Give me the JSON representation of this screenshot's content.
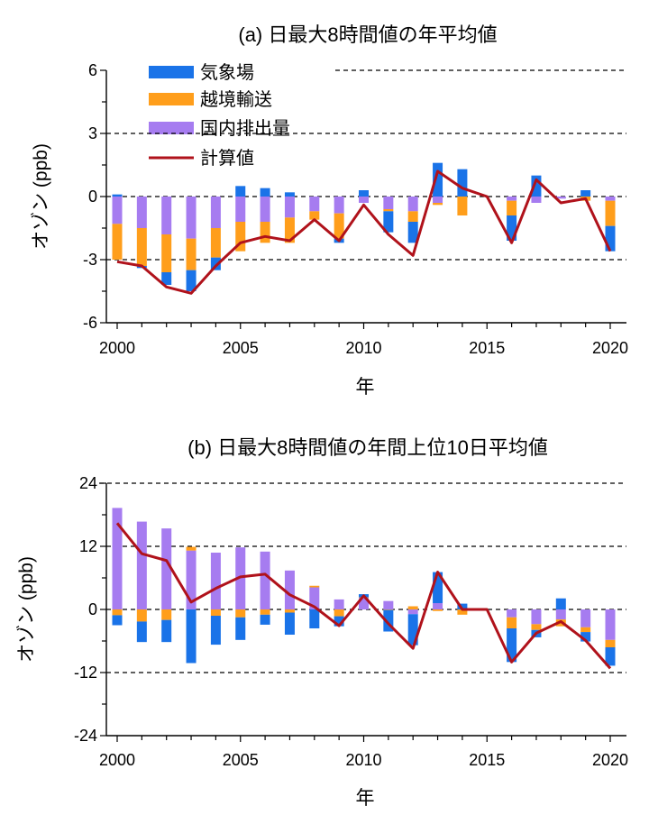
{
  "colors": {
    "meteorology": "#1a73e8",
    "transboundary": "#ff9e1b",
    "domestic": "#a67cf0",
    "calculated": "#b0121b"
  },
  "legend": [
    "気象場",
    "越境輸送",
    "国内排出量",
    "計算値"
  ],
  "chart_data": [
    {
      "type": "bar",
      "title": "(a) 日最大8時間値の年平均値",
      "xlabel": "年",
      "ylabel": "オゾン (ppb)",
      "ylim": [
        -6,
        6
      ],
      "yticks": [
        "6",
        "3",
        "0",
        "-3",
        "-6"
      ],
      "xticks": [
        "2000",
        "2005",
        "2010",
        "2015",
        "2020"
      ],
      "grid": true,
      "legend_position": "top-left",
      "x": [
        2000,
        2001,
        2002,
        2003,
        2004,
        2005,
        2006,
        2007,
        2008,
        2009,
        2010,
        2011,
        2012,
        2013,
        2014,
        2015,
        2016,
        2017,
        2018,
        2019,
        2020
      ],
      "series": [
        {
          "name": "気象場",
          "values": [
            0.1,
            -0.1,
            -0.6,
            -1.0,
            -0.6,
            0.5,
            0.4,
            0.2,
            0.0,
            -0.2,
            0.3,
            -1.0,
            -1.0,
            1.6,
            1.3,
            0.0,
            -1.2,
            1.0,
            0.0,
            0.3,
            -1.2
          ]
        },
        {
          "name": "越境輸送",
          "values": [
            -1.7,
            -1.8,
            -1.8,
            -1.5,
            -1.4,
            -1.4,
            -1.0,
            -1.2,
            -0.4,
            -1.2,
            0.0,
            -0.1,
            -0.5,
            -0.1,
            -0.9,
            0.0,
            -0.7,
            0.0,
            0.0,
            -0.2,
            -1.2
          ]
        },
        {
          "name": "国内排出量",
          "values": [
            -1.3,
            -1.5,
            -1.8,
            -2.0,
            -1.5,
            -1.2,
            -1.2,
            -1.0,
            -0.7,
            -0.8,
            -0.3,
            -0.6,
            -0.7,
            -0.3,
            0.0,
            0.0,
            -0.2,
            -0.3,
            -0.1,
            0.0,
            -0.2
          ]
        },
        {
          "name": "計算値",
          "values": [
            -3.1,
            -3.3,
            -4.3,
            -4.6,
            -3.3,
            -2.2,
            -1.9,
            -2.1,
            -1.1,
            -2.1,
            -0.4,
            -1.8,
            -2.8,
            1.2,
            0.4,
            0.0,
            -2.2,
            0.8,
            -0.3,
            -0.1,
            -2.6
          ]
        }
      ]
    },
    {
      "type": "bar",
      "title": "(b) 日最大8時間値の年間上位10日平均値",
      "xlabel": "年",
      "ylabel": "オゾン (ppb)",
      "ylim": [
        -24,
        24
      ],
      "yticks": [
        "24",
        "12",
        "0",
        "-12",
        "-24"
      ],
      "xticks": [
        "2000",
        "2005",
        "2010",
        "2015",
        "2020"
      ],
      "grid": true,
      "x": [
        2000,
        2001,
        2002,
        2003,
        2004,
        2005,
        2006,
        2007,
        2008,
        2009,
        2010,
        2011,
        2012,
        2013,
        2014,
        2015,
        2016,
        2017,
        2018,
        2019,
        2020
      ],
      "series": [
        {
          "name": "気象場",
          "values": [
            -1.9,
            -3.9,
            -4.2,
            -10.2,
            -5.5,
            -4.3,
            -1.9,
            -4.2,
            -3.6,
            -1.9,
            0.6,
            -4.1,
            -5.9,
            5.9,
            1.1,
            0.0,
            -6.4,
            -1.4,
            2.1,
            -1.8,
            -3.5
          ]
        },
        {
          "name": "越境輸送",
          "values": [
            -1.1,
            -2.3,
            -2.0,
            0.7,
            -1.2,
            -1.5,
            -1.0,
            -0.6,
            0.3,
            -1.3,
            0.1,
            -0.1,
            0.6,
            -0.3,
            -1.0,
            0.0,
            -2.1,
            -1.1,
            -1.3,
            -0.9,
            -1.4
          ]
        },
        {
          "name": "国内排出量",
          "values": [
            19.3,
            16.7,
            15.4,
            11.2,
            10.8,
            11.8,
            11.0,
            7.4,
            4.2,
            1.9,
            2.2,
            1.6,
            -0.9,
            1.2,
            0.0,
            0.0,
            -1.5,
            -2.8,
            -1.9,
            -3.4,
            -5.8
          ]
        },
        {
          "name": "計算値",
          "values": [
            16.4,
            10.6,
            9.3,
            1.4,
            4.0,
            6.2,
            6.7,
            2.8,
            0.5,
            -3.1,
            2.6,
            -2.7,
            -7.4,
            7.1,
            0.0,
            0.0,
            -10.0,
            -4.5,
            -2.3,
            -5.9,
            -11.2
          ]
        }
      ]
    }
  ]
}
